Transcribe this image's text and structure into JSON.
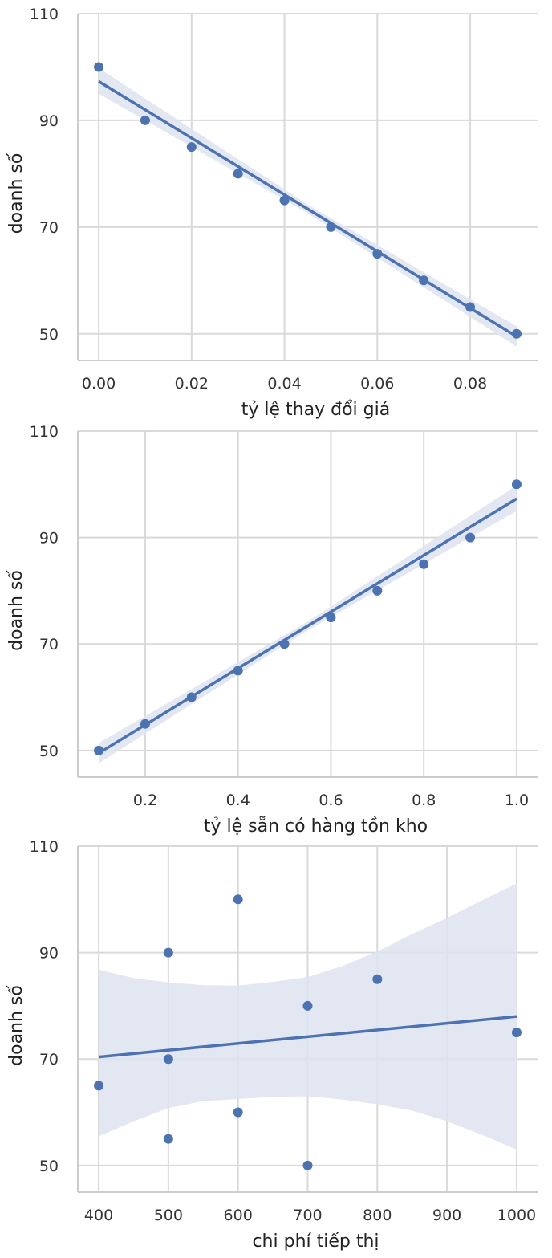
{
  "colors": {
    "series": "#4c72b0",
    "ci_band": "#dde3f0",
    "grid": "#d9d9d9",
    "spine": "#cccccc"
  },
  "chart_data": [
    {
      "type": "scatter",
      "xlabel": "tỷ lệ thay đổi giá",
      "ylabel": "doanh số",
      "xlim": [
        -0.0045,
        0.0945
      ],
      "ylim": [
        45,
        110
      ],
      "xticks": [
        0.0,
        0.02,
        0.04,
        0.06,
        0.08
      ],
      "xtick_labels": [
        "0.00",
        "0.02",
        "0.04",
        "0.06",
        "0.08"
      ],
      "yticks": [
        50,
        70,
        90,
        110
      ],
      "ytick_labels": [
        "50",
        "70",
        "90",
        "110"
      ],
      "grid": true,
      "points": {
        "x": [
          0.0,
          0.01,
          0.02,
          0.03,
          0.04,
          0.05,
          0.06,
          0.07,
          0.08,
          0.09
        ],
        "y": [
          100,
          90,
          85,
          80,
          75,
          70,
          65,
          60,
          55,
          50
        ]
      },
      "fit_line": {
        "x": [
          0.0,
          0.09
        ],
        "y": [
          97.3,
          49.5
        ]
      },
      "ci_band": [
        {
          "x": 0.0,
          "lo": 95.0,
          "hi": 99.8
        },
        {
          "x": 0.045,
          "lo": 72.6,
          "hi": 74.2
        },
        {
          "x": 0.09,
          "lo": 47.6,
          "hi": 51.4
        }
      ]
    },
    {
      "type": "scatter",
      "xlabel": "tỷ lệ sẵn có hàng tồn kho",
      "ylabel": "doanh số",
      "xlim": [
        0.055,
        1.045
      ],
      "ylim": [
        45,
        110
      ],
      "xticks": [
        0.2,
        0.4,
        0.6,
        0.8,
        1.0
      ],
      "xtick_labels": [
        "0.2",
        "0.4",
        "0.6",
        "0.8",
        "1.0"
      ],
      "yticks": [
        50,
        70,
        90,
        110
      ],
      "ytick_labels": [
        "50",
        "70",
        "90",
        "110"
      ],
      "grid": true,
      "points": {
        "x": [
          0.1,
          0.2,
          0.3,
          0.4,
          0.5,
          0.6,
          0.7,
          0.8,
          0.9,
          1.0
        ],
        "y": [
          50,
          55,
          60,
          65,
          70,
          75,
          80,
          85,
          90,
          100
        ]
      },
      "fit_line": {
        "x": [
          0.1,
          1.0
        ],
        "y": [
          49.5,
          97.3
        ]
      },
      "ci_band": [
        {
          "x": 0.1,
          "lo": 47.6,
          "hi": 51.4
        },
        {
          "x": 0.55,
          "lo": 72.6,
          "hi": 74.2
        },
        {
          "x": 1.0,
          "lo": 95.0,
          "hi": 99.8
        }
      ]
    },
    {
      "type": "scatter",
      "xlabel": "chi phí tiếp thị",
      "ylabel": "doanh số",
      "xlim": [
        370,
        1030
      ],
      "ylim": [
        45,
        110
      ],
      "xticks": [
        400,
        500,
        600,
        700,
        800,
        900,
        1000
      ],
      "xtick_labels": [
        "400",
        "500",
        "600",
        "700",
        "800",
        "900",
        "1000"
      ],
      "yticks": [
        50,
        70,
        90,
        110
      ],
      "ytick_labels": [
        "50",
        "70",
        "90",
        "110"
      ],
      "grid": true,
      "points": {
        "x": [
          400,
          500,
          500,
          500,
          600,
          600,
          700,
          700,
          800,
          1000
        ],
        "y": [
          65,
          90,
          70,
          55,
          100,
          60,
          80,
          50,
          85,
          75
        ]
      },
      "fit_line": {
        "x": [
          400,
          1000
        ],
        "y": [
          70.4,
          78.0
        ]
      },
      "ci_band": [
        {
          "x": 400,
          "lo": 55.5,
          "hi": 86.8
        },
        {
          "x": 450,
          "lo": 58.3,
          "hi": 85.2
        },
        {
          "x": 500,
          "lo": 60.8,
          "hi": 84.4
        },
        {
          "x": 550,
          "lo": 62.1,
          "hi": 83.9
        },
        {
          "x": 600,
          "lo": 62.5,
          "hi": 83.8
        },
        {
          "x": 650,
          "lo": 62.9,
          "hi": 84.5
        },
        {
          "x": 700,
          "lo": 63.0,
          "hi": 85.4
        },
        {
          "x": 750,
          "lo": 62.4,
          "hi": 87.5
        },
        {
          "x": 800,
          "lo": 61.5,
          "hi": 90.2
        },
        {
          "x": 850,
          "lo": 60.3,
          "hi": 93.5
        },
        {
          "x": 900,
          "lo": 58.3,
          "hi": 96.5
        },
        {
          "x": 950,
          "lo": 55.8,
          "hi": 99.8
        },
        {
          "x": 1000,
          "lo": 53.0,
          "hi": 103.0
        }
      ]
    }
  ]
}
